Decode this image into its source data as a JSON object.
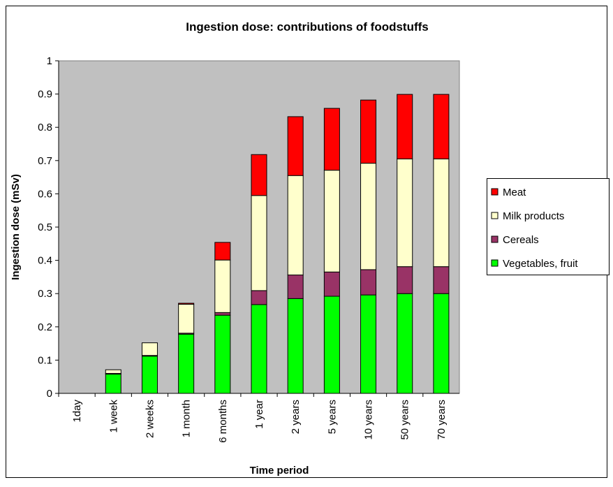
{
  "chart_data": {
    "type": "stacked-bar",
    "title": "Ingestion dose: contributions of foodstuffs",
    "x_label": "Time period",
    "y_label": "Ingestion dose (mSv)",
    "categories": [
      "1day",
      "1 week",
      "2 weeks",
      "1 month",
      "6 months",
      "1 year",
      "2 years",
      "5 years",
      "10 years",
      "50 years",
      "70 years"
    ],
    "series": [
      {
        "name": "Vegetables, fruit",
        "color": "#00ff00",
        "values": [
          0,
          0.058,
          0.112,
          0.178,
          0.235,
          0.267,
          0.285,
          0.292,
          0.296,
          0.3,
          0.3
        ]
      },
      {
        "name": "Cereals",
        "color": "#993366",
        "values": [
          0,
          0.002,
          0.002,
          0.003,
          0.008,
          0.042,
          0.071,
          0.073,
          0.076,
          0.081,
          0.081
        ]
      },
      {
        "name": "Milk products",
        "color": "#ffffcc",
        "values": [
          0,
          0.011,
          0.038,
          0.087,
          0.158,
          0.286,
          0.299,
          0.306,
          0.32,
          0.324,
          0.324
        ]
      },
      {
        "name": "Meat",
        "color": "#ff0000",
        "values": [
          0,
          0,
          0,
          0.003,
          0.053,
          0.123,
          0.177,
          0.186,
          0.19,
          0.194,
          0.194
        ]
      }
    ],
    "ylim": [
      0,
      1
    ],
    "yticks": [
      0,
      0.1,
      0.2,
      0.3,
      0.4,
      0.5,
      0.6,
      0.7,
      0.8,
      0.9,
      1
    ],
    "plot_background": "#c0c0c0"
  }
}
